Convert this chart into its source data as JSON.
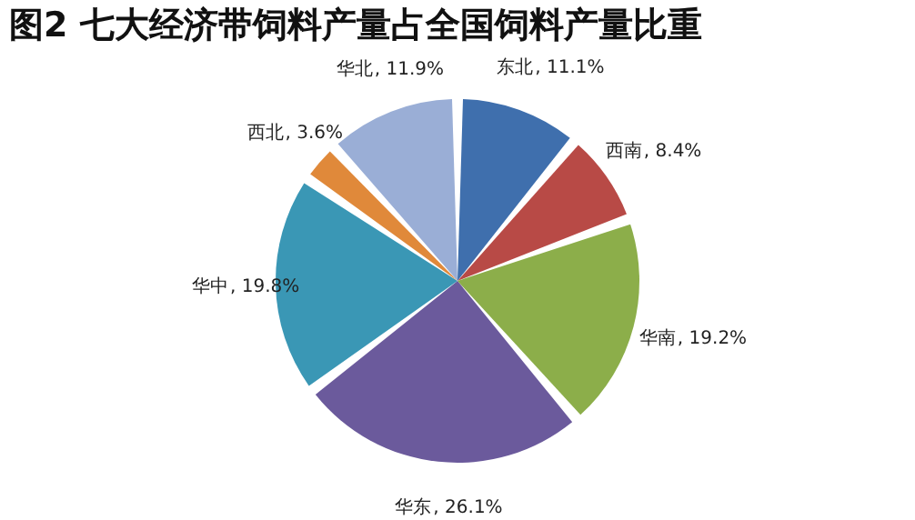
{
  "chart_data": {
    "type": "pie",
    "title": "图2 七大经济带饲料产量占全国饲料产量比重",
    "categories": [
      "东北",
      "西南",
      "华南",
      "华东",
      "华中",
      "西北",
      "华北"
    ],
    "values": [
      11.1,
      8.4,
      19.2,
      26.1,
      19.8,
      3.6,
      11.9
    ],
    "colors": [
      "#3f6fad",
      "#b84a46",
      "#8cae4a",
      "#6b5a9c",
      "#3a97b5",
      "#e0893a",
      "#9aaed6"
    ],
    "value_labels": [
      ", 11.1%",
      ", 8.4%",
      ", 19.2%",
      ", 26.1%",
      ", 19.8%",
      ", 3.6%",
      ", 11.9%"
    ],
    "legend": false
  }
}
